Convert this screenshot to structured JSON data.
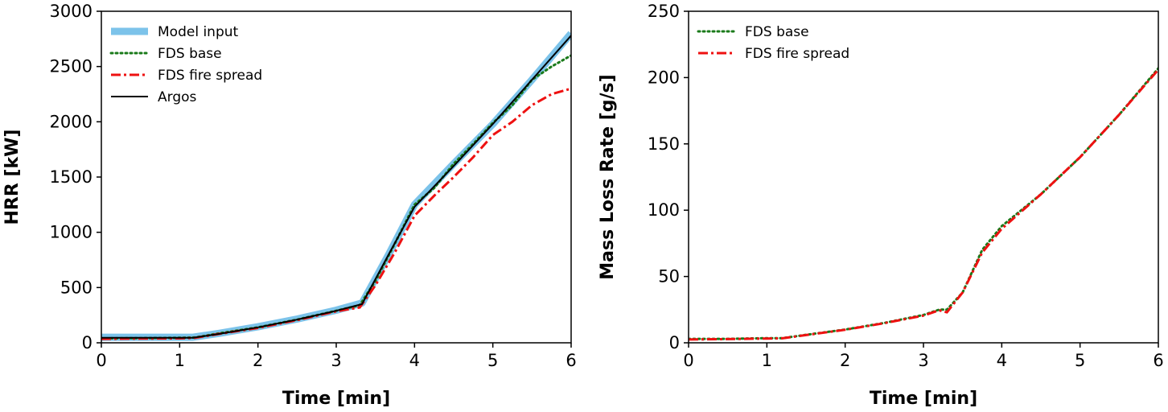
{
  "colors": {
    "model_input": "#7cc3ea",
    "fds_base": "#1a7a1a",
    "fds_fire_spread": "#ee1111",
    "argos": "#000000"
  },
  "chart_data": [
    {
      "type": "line",
      "xlabel": "Time [min]",
      "ylabel": "HRR [kW]",
      "xlim": [
        0,
        6
      ],
      "ylim": [
        0,
        3000
      ],
      "xticks": [
        "0",
        "1",
        "2",
        "3",
        "4",
        "5",
        "6"
      ],
      "yticks": [
        "0",
        "500",
        "1000",
        "1500",
        "2000",
        "2500",
        "3000"
      ],
      "grid": false,
      "legend_position": "top-left",
      "series": [
        {
          "name": "Model input",
          "style": "thick-solid",
          "x": [
            0,
            1.17,
            1.5,
            2.0,
            2.5,
            3.0,
            3.33,
            3.67,
            4.0,
            4.5,
            5.0,
            5.5,
            6.0
          ],
          "y": [
            50,
            50,
            85,
            145,
            215,
            295,
            360,
            800,
            1250,
            1620,
            1980,
            2380,
            2800
          ]
        },
        {
          "name": "FDS base",
          "style": "dotted",
          "x": [
            0,
            0.5,
            1.0,
            1.2,
            1.5,
            2.0,
            2.5,
            3.0,
            3.3,
            3.5,
            3.75,
            4.0,
            4.25,
            4.5,
            4.75,
            5.0,
            5.25,
            5.5,
            5.75,
            6.0
          ],
          "y": [
            40,
            42,
            45,
            48,
            85,
            140,
            210,
            290,
            340,
            560,
            900,
            1250,
            1400,
            1620,
            1800,
            1990,
            2150,
            2380,
            2500,
            2600
          ]
        },
        {
          "name": "FDS fire spread",
          "style": "dash-dot",
          "x": [
            0,
            0.5,
            1.0,
            1.2,
            1.5,
            2.0,
            2.5,
            3.0,
            3.3,
            3.5,
            3.75,
            4.0,
            4.25,
            4.5,
            4.75,
            5.0,
            5.25,
            5.5,
            5.75,
            6.0
          ],
          "y": [
            35,
            38,
            40,
            45,
            80,
            135,
            205,
            285,
            320,
            520,
            820,
            1150,
            1330,
            1500,
            1680,
            1880,
            2000,
            2150,
            2250,
            2300
          ]
        },
        {
          "name": "Argos",
          "style": "solid",
          "x": [
            0,
            1.17,
            1.5,
            2.0,
            2.5,
            3.0,
            3.33,
            3.67,
            4.0,
            4.5,
            5.0,
            5.5,
            6.0
          ],
          "y": [
            45,
            45,
            80,
            140,
            210,
            290,
            350,
            800,
            1230,
            1600,
            1980,
            2380,
            2780
          ]
        }
      ]
    },
    {
      "type": "line",
      "xlabel": "Time [min]",
      "ylabel": "Mass Loss Rate [g/s]",
      "xlim": [
        0,
        6
      ],
      "ylim": [
        0,
        250
      ],
      "xticks": [
        "0",
        "1",
        "2",
        "3",
        "4",
        "5",
        "6"
      ],
      "yticks": [
        "0",
        "50",
        "100",
        "150",
        "200",
        "250"
      ],
      "grid": false,
      "legend_position": "top-left",
      "series": [
        {
          "name": "FDS base",
          "style": "dotted",
          "x": [
            0,
            0.5,
            1.0,
            1.2,
            1.5,
            2.0,
            2.5,
            3.0,
            3.2,
            3.3,
            3.5,
            3.75,
            4.0,
            4.5,
            5.0,
            5.5,
            6.0
          ],
          "y": [
            3,
            3,
            3.5,
            3.5,
            6,
            10,
            15,
            21,
            25,
            25,
            38,
            70,
            88,
            112,
            140,
            172,
            207
          ]
        },
        {
          "name": "FDS fire spread",
          "style": "dash-dot",
          "x": [
            0,
            0.5,
            1.0,
            1.2,
            1.5,
            2.0,
            2.5,
            3.0,
            3.2,
            3.3,
            3.5,
            3.75,
            4.0,
            4.5,
            5.0,
            5.5,
            6.0
          ],
          "y": [
            2.5,
            2.8,
            3.2,
            3.4,
            5.8,
            9.8,
            14.8,
            20.5,
            24.5,
            23,
            38,
            68,
            86,
            112,
            140,
            172,
            206
          ]
        }
      ]
    }
  ]
}
